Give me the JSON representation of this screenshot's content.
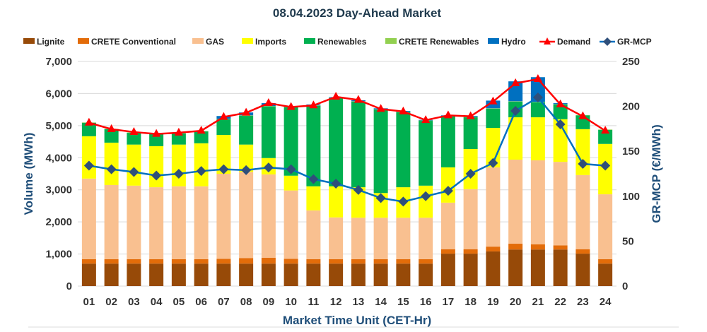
{
  "chart_data": {
    "type": "bar",
    "title": "08.04.2023  Day-Ahead Market",
    "xlabel": "Market Time Unit (CET-Hr)",
    "ylabel": "Volume (MWh)",
    "y2label": "GR-MCP (€/MWh)",
    "ylim": [
      0,
      7000
    ],
    "y2lim": [
      0,
      250
    ],
    "yticks": [
      "0",
      "1,000",
      "2,000",
      "3,000",
      "4,000",
      "5,000",
      "6,000",
      "7,000"
    ],
    "yticks_values": [
      0,
      1000,
      2000,
      3000,
      4000,
      5000,
      6000,
      7000
    ],
    "y2ticks": [
      "0",
      "50",
      "100",
      "150",
      "200",
      "250"
    ],
    "y2ticks_values": [
      0,
      50,
      100,
      150,
      200,
      250
    ],
    "grid": true,
    "legend_position": "top",
    "categories": [
      "01",
      "02",
      "03",
      "04",
      "05",
      "06",
      "07",
      "08",
      "09",
      "10",
      "11",
      "12",
      "13",
      "14",
      "15",
      "16",
      "17",
      "18",
      "19",
      "20",
      "21",
      "22",
      "23",
      "24"
    ],
    "series": [
      {
        "name": "Lignite",
        "kind": "bar",
        "color": "#974a08",
        "values": [
          700,
          700,
          700,
          700,
          700,
          700,
          700,
          700,
          700,
          700,
          700,
          700,
          700,
          700,
          700,
          700,
          1010,
          1010,
          1080,
          1140,
          1140,
          1140,
          1010,
          700
        ]
      },
      {
        "name": "CRETE Conventional",
        "kind": "bar",
        "color": "#e36c09",
        "values": [
          140,
          140,
          140,
          140,
          140,
          140,
          150,
          170,
          180,
          150,
          140,
          140,
          140,
          140,
          140,
          140,
          140,
          140,
          150,
          180,
          160,
          130,
          140,
          140
        ]
      },
      {
        "name": "GAS",
        "kind": "bar",
        "color": "#f9c090",
        "values": [
          2510,
          2310,
          2290,
          2240,
          2270,
          2270,
          2650,
          2690,
          2600,
          2130,
          1520,
          1300,
          1290,
          1290,
          1290,
          1290,
          1450,
          1870,
          2470,
          2620,
          2620,
          2600,
          2310,
          2020
        ]
      },
      {
        "name": "Imports",
        "kind": "bar",
        "color": "#ffff00",
        "values": [
          1320,
          1320,
          1280,
          1280,
          1300,
          1340,
          1210,
          850,
          510,
          460,
          750,
          970,
          950,
          770,
          950,
          1000,
          1100,
          1250,
          1230,
          1320,
          1340,
          1330,
          1430,
          1570
        ]
      },
      {
        "name": "Renewables",
        "kind": "bar",
        "color": "#00b050",
        "values": [
          420,
          420,
          370,
          380,
          350,
          370,
          490,
          900,
          1610,
          2130,
          2510,
          2750,
          2670,
          2600,
          2340,
          2020,
          1590,
          990,
          600,
          490,
          470,
          460,
          430,
          440
        ]
      },
      {
        "name": "CRETE Renewables",
        "kind": "bar",
        "color": "#92d050",
        "values": [
          10,
          10,
          10,
          10,
          10,
          10,
          10,
          10,
          10,
          10,
          10,
          10,
          10,
          10,
          10,
          10,
          10,
          10,
          10,
          10,
          10,
          10,
          10,
          10
        ]
      },
      {
        "name": "Hydro",
        "kind": "bar",
        "color": "#0070c0",
        "values": [
          0,
          0,
          0,
          0,
          0,
          0,
          90,
          90,
          90,
          30,
          30,
          20,
          30,
          30,
          30,
          20,
          20,
          30,
          240,
          620,
          770,
          30,
          0,
          0
        ]
      },
      {
        "name": "Demand",
        "kind": "line",
        "axis": "left",
        "color": "#ff0000",
        "marker": "triangle",
        "values": [
          5090,
          4890,
          4800,
          4740,
          4780,
          4840,
          5270,
          5400,
          5700,
          5580,
          5630,
          5900,
          5800,
          5520,
          5440,
          5170,
          5320,
          5290,
          5750,
          6320,
          6450,
          5660,
          5290,
          4840
        ]
      },
      {
        "name": "GR-MCP",
        "kind": "line",
        "axis": "right",
        "color": "#0070c0",
        "marker_color": "#2f4f7a",
        "marker": "diamond",
        "values": [
          134,
          130,
          127,
          123,
          125,
          128,
          130,
          129,
          132,
          130,
          119,
          114,
          107,
          98,
          94,
          100,
          106,
          125,
          137,
          195,
          210,
          180,
          136,
          134
        ]
      }
    ]
  }
}
